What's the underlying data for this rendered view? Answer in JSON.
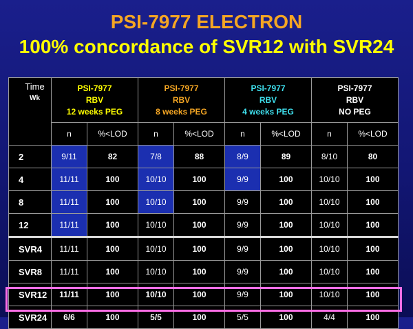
{
  "title": {
    "line1": "PSI-7977 ELECTRON",
    "line2": "100% concordance of SVR12 with SVR24"
  },
  "colors": {
    "title1": "#f5a623",
    "title2": "#ffff00",
    "highlight": "#ff6fe6"
  },
  "table": {
    "time_label": "Time",
    "time_unit": "Wk",
    "groups": [
      {
        "line1": "PSI-7977",
        "line2": "RBV",
        "line3": "12 weeks PEG",
        "color": "#ffff00"
      },
      {
        "line1": "PSI-7977",
        "line2": "RBV",
        "line3": "8 weeks PEG",
        "color": "#f5a623"
      },
      {
        "line1": "PSI-7977",
        "line2": "RBV",
        "line3": "4 weeks PEG",
        "color": "#3fe0ee"
      },
      {
        "line1": "PSI-7977",
        "line2": "RBV",
        "line3": "NO PEG",
        "color": "#ffffff"
      }
    ],
    "sub_n": "n",
    "sub_pct": "%<LOD",
    "rows": [
      {
        "label": "2",
        "cells": [
          "9/11",
          "82",
          "7/8",
          "88",
          "8/9",
          "89",
          "8/10",
          "80"
        ]
      },
      {
        "label": "4",
        "cells": [
          "11/11",
          "100",
          "10/10",
          "100",
          "9/9",
          "100",
          "10/10",
          "100"
        ]
      },
      {
        "label": "8",
        "cells": [
          "11/11",
          "100",
          "10/10",
          "100",
          "9/9",
          "100",
          "10/10",
          "100"
        ]
      },
      {
        "label": "12",
        "cells": [
          "11/11",
          "100",
          "10/10",
          "100",
          "9/9",
          "100",
          "10/10",
          "100"
        ]
      },
      {
        "label": "SVR4",
        "cells": [
          "11/11",
          "100",
          "10/10",
          "100",
          "9/9",
          "100",
          "10/10",
          "100"
        ]
      },
      {
        "label": "SVR8",
        "cells": [
          "11/11",
          "100",
          "10/10",
          "100",
          "9/9",
          "100",
          "10/10",
          "100"
        ]
      },
      {
        "label": "SVR12",
        "cells": [
          "11/11",
          "100",
          "10/10",
          "100",
          "9/9",
          "100",
          "10/10",
          "100"
        ]
      },
      {
        "label": "SVR24",
        "cells": [
          "6/6",
          "100",
          "5/5",
          "100",
          "5/5",
          "100",
          "4/4",
          "100"
        ]
      }
    ]
  }
}
